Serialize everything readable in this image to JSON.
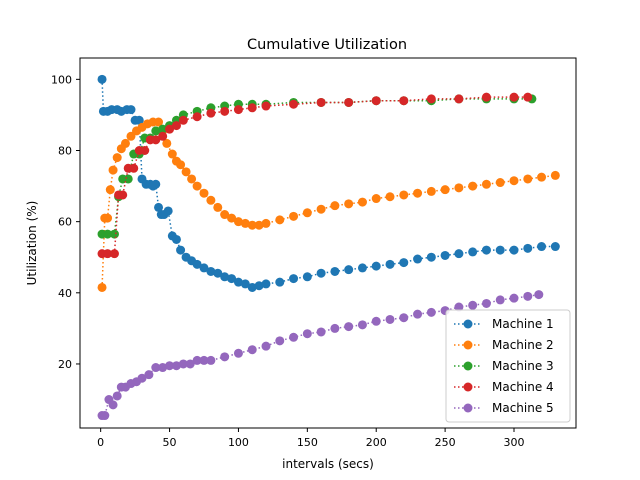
{
  "chart_data": {
    "type": "line",
    "title": "Cumulative Utilization",
    "xlabel": "intervals (secs)",
    "ylabel": "Utilization (%)",
    "xlim": [
      -15,
      345
    ],
    "ylim": [
      2,
      106
    ],
    "xticks": [
      0,
      50,
      100,
      150,
      200,
      250,
      300
    ],
    "yticks": [
      20,
      40,
      60,
      80,
      100
    ],
    "legend_position": "bottom-right",
    "line_style": "dotted with circle markers",
    "series": [
      {
        "name": "Machine 1",
        "color": "#1f77b4",
        "x": [
          1,
          2,
          5,
          8,
          12,
          15,
          19,
          22,
          25,
          28,
          30,
          33,
          36,
          38,
          40,
          42,
          44,
          46,
          49,
          52,
          55,
          58,
          62,
          66,
          70,
          75,
          80,
          85,
          90,
          95,
          100,
          105,
          110,
          115,
          120,
          130,
          140,
          150,
          160,
          170,
          180,
          190,
          200,
          210,
          220,
          230,
          240,
          250,
          260,
          270,
          280,
          290,
          300,
          310,
          320,
          330
        ],
        "y": [
          100,
          91,
          91,
          91.5,
          91.5,
          91,
          91.5,
          91.5,
          88.5,
          88.5,
          72,
          70.5,
          70.5,
          70,
          70.5,
          64,
          62,
          62,
          63,
          56,
          55,
          52,
          50,
          49,
          48,
          47,
          46,
          45.5,
          44.5,
          44,
          43,
          42.5,
          41.5,
          42,
          42.5,
          43,
          44,
          44.5,
          45.5,
          46,
          46.5,
          47,
          47.5,
          48,
          48.5,
          49.5,
          50,
          50.5,
          51,
          51.5,
          52,
          52,
          52,
          52.5,
          53,
          53
        ]
      },
      {
        "name": "Machine 2",
        "color": "#ff7f0e",
        "x": [
          1,
          3,
          5,
          7,
          9,
          12,
          15,
          18,
          22,
          26,
          30,
          34,
          38,
          42,
          45,
          48,
          52,
          55,
          58,
          62,
          66,
          70,
          75,
          80,
          85,
          90,
          95,
          100,
          105,
          110,
          115,
          120,
          130,
          140,
          150,
          160,
          170,
          180,
          190,
          200,
          210,
          220,
          230,
          240,
          250,
          260,
          270,
          280,
          290,
          300,
          310,
          320,
          330
        ],
        "y": [
          41.5,
          61,
          61,
          69,
          74.5,
          78,
          80.5,
          82,
          84,
          85.5,
          86.5,
          87.5,
          88,
          88,
          85.5,
          82,
          79,
          77,
          76,
          74,
          72,
          70,
          68,
          66,
          64,
          62,
          61,
          60,
          59.5,
          59,
          59,
          59.5,
          60.5,
          61.5,
          62.5,
          63.5,
          64.5,
          65,
          65.5,
          66.5,
          67,
          67.5,
          68,
          68.5,
          69,
          69.5,
          70,
          70.5,
          71,
          71.5,
          72,
          72.5,
          73
        ]
      },
      {
        "name": "Machine 3",
        "color": "#2ca02c",
        "x": [
          1,
          5,
          10,
          13,
          16,
          20,
          24,
          28,
          32,
          36,
          40,
          45,
          50,
          55,
          60,
          70,
          80,
          90,
          100,
          110,
          120,
          140,
          160,
          180,
          200,
          220,
          240,
          260,
          280,
          300,
          313
        ],
        "y": [
          56.5,
          56.5,
          56.5,
          67,
          72,
          72,
          79,
          79,
          83.5,
          83.5,
          85.5,
          86,
          87,
          88.5,
          90,
          91,
          92,
          92.5,
          93,
          93,
          93,
          93.5,
          93.5,
          93.5,
          94,
          94,
          94,
          94.5,
          94.5,
          94.5,
          94.5
        ]
      },
      {
        "name": "Machine 4",
        "color": "#d62728",
        "x": [
          1,
          5,
          10,
          13,
          16,
          20,
          24,
          28,
          32,
          36,
          40,
          45,
          50,
          55,
          60,
          70,
          80,
          90,
          100,
          110,
          120,
          140,
          160,
          180,
          200,
          220,
          240,
          260,
          280,
          300,
          310
        ],
        "y": [
          51,
          51,
          51,
          67.5,
          67.5,
          75,
          75,
          80,
          80,
          83,
          83,
          84,
          86,
          87,
          88.5,
          89.5,
          90.5,
          91,
          91.5,
          92,
          92.5,
          93,
          93.5,
          93.5,
          94,
          94,
          94.5,
          94.5,
          95,
          95,
          95
        ]
      },
      {
        "name": "Machine 5",
        "color": "#9467bd",
        "x": [
          1,
          3,
          6,
          9,
          12,
          15,
          18,
          22,
          26,
          30,
          35,
          40,
          45,
          50,
          55,
          60,
          65,
          70,
          75,
          80,
          90,
          100,
          110,
          120,
          130,
          140,
          150,
          160,
          170,
          180,
          190,
          200,
          210,
          220,
          230,
          240,
          250,
          260,
          270,
          280,
          290,
          300,
          310,
          318
        ],
        "y": [
          5.5,
          5.5,
          10,
          8.5,
          11,
          13.5,
          13.5,
          14.5,
          15,
          16,
          17,
          19,
          19,
          19.5,
          19.5,
          20,
          20,
          21,
          21,
          21,
          22,
          23,
          24,
          25,
          26.5,
          27.5,
          28.5,
          29,
          30,
          30.5,
          31,
          32,
          32.5,
          33,
          34,
          34.5,
          35,
          36,
          36.5,
          37,
          38,
          38.5,
          39,
          39.5
        ]
      }
    ]
  }
}
